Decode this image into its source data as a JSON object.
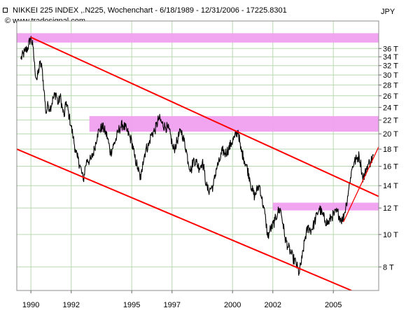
{
  "header": {
    "title": "NIKKEI 225 INDEX ,.N225, Wochenchart - 6/18/1989 - 12/31/2006 - 17225.8301",
    "watermark": "© www.tradesignal.com",
    "unit": "JPY"
  },
  "colors": {
    "price": "#000000",
    "trendline": "#ff0000",
    "zone": "#f0a0f0",
    "grid": "#b8d8b0",
    "background": "#ffffff"
  },
  "chart_data": {
    "type": "line",
    "title": "NIKKEI 225 INDEX ,.N225, Wochenchart - 6/18/1989 - 12/31/2006 - 17225.8301",
    "xlabel": "",
    "ylabel": "JPY",
    "y_scale": "log",
    "xlim": [
      1989.3,
      2007.25
    ],
    "ylim": [
      6800,
      43500
    ],
    "grid": true,
    "x_ticks": [
      {
        "value": 1990,
        "label": "1990"
      },
      {
        "value": 1992,
        "label": "1992"
      },
      {
        "value": 1995,
        "label": "1995"
      },
      {
        "value": 1997,
        "label": "1997"
      },
      {
        "value": 2000,
        "label": "2000"
      },
      {
        "value": 2002,
        "label": "2002"
      },
      {
        "value": 2005,
        "label": "2005"
      }
    ],
    "y_ticks": [
      {
        "value": 8000,
        "label": "8 T"
      },
      {
        "value": 10000,
        "label": "10 T"
      },
      {
        "value": 12000,
        "label": "12 T"
      },
      {
        "value": 14000,
        "label": "14 T"
      },
      {
        "value": 16000,
        "label": "16 T"
      },
      {
        "value": 18000,
        "label": "18 T"
      },
      {
        "value": 20000,
        "label": "20 T"
      },
      {
        "value": 22000,
        "label": "22 T"
      },
      {
        "value": 24000,
        "label": "24 T"
      },
      {
        "value": 26000,
        "label": "26 T"
      },
      {
        "value": 28000,
        "label": "28 T"
      },
      {
        "value": 30000,
        "label": "30 T"
      },
      {
        "value": 32000,
        "label": "32 T"
      },
      {
        "value": 34000,
        "label": "34 T"
      },
      {
        "value": 36000,
        "label": "36 T"
      }
    ],
    "series": [
      {
        "values": [
          [
            1989.5,
            33500
          ],
          [
            1989.7,
            35300
          ],
          [
            1989.85,
            36200
          ],
          [
            1989.99,
            38900
          ],
          [
            1990.1,
            36500
          ],
          [
            1990.2,
            31000
          ],
          [
            1990.3,
            29000
          ],
          [
            1990.45,
            32500
          ],
          [
            1990.55,
            31500
          ],
          [
            1990.65,
            27000
          ],
          [
            1990.75,
            23000
          ],
          [
            1990.85,
            24500
          ],
          [
            1990.95,
            23800
          ],
          [
            1991.1,
            25500
          ],
          [
            1991.25,
            26500
          ],
          [
            1991.35,
            24500
          ],
          [
            1991.45,
            26000
          ],
          [
            1991.55,
            24000
          ],
          [
            1991.65,
            22500
          ],
          [
            1991.75,
            25000
          ],
          [
            1991.9,
            22500
          ],
          [
            1992.0,
            21000
          ],
          [
            1992.1,
            19500
          ],
          [
            1992.2,
            18000
          ],
          [
            1992.3,
            17000
          ],
          [
            1992.45,
            16000
          ],
          [
            1992.6,
            14500
          ],
          [
            1992.7,
            16000
          ],
          [
            1992.8,
            16800
          ],
          [
            1992.9,
            16600
          ],
          [
            1993.0,
            16800
          ],
          [
            1993.15,
            18000
          ],
          [
            1993.3,
            20000
          ],
          [
            1993.4,
            20500
          ],
          [
            1993.55,
            21000
          ],
          [
            1993.7,
            20200
          ],
          [
            1993.8,
            19500
          ],
          [
            1993.95,
            17500
          ],
          [
            1994.1,
            18500
          ],
          [
            1994.25,
            19500
          ],
          [
            1994.35,
            20500
          ],
          [
            1994.45,
            21000
          ],
          [
            1994.55,
            21300
          ],
          [
            1994.75,
            20500
          ],
          [
            1994.9,
            19600
          ],
          [
            1995.0,
            19000
          ],
          [
            1995.15,
            17000
          ],
          [
            1995.3,
            15800
          ],
          [
            1995.45,
            14600
          ],
          [
            1995.55,
            16500
          ],
          [
            1995.7,
            18000
          ],
          [
            1995.85,
            18500
          ],
          [
            1995.95,
            19800
          ],
          [
            1996.15,
            20500
          ],
          [
            1996.35,
            22300
          ],
          [
            1996.5,
            21500
          ],
          [
            1996.65,
            21000
          ],
          [
            1996.8,
            20800
          ],
          [
            1996.95,
            19500
          ],
          [
            1997.05,
            18000
          ],
          [
            1997.15,
            18200
          ],
          [
            1997.3,
            19500
          ],
          [
            1997.45,
            20500
          ],
          [
            1997.55,
            19500
          ],
          [
            1997.7,
            18000
          ],
          [
            1997.8,
            16500
          ],
          [
            1997.95,
            15500
          ],
          [
            1998.05,
            16700
          ],
          [
            1998.2,
            16500
          ],
          [
            1998.35,
            15800
          ],
          [
            1998.5,
            16500
          ],
          [
            1998.6,
            15500
          ],
          [
            1998.7,
            14000
          ],
          [
            1998.8,
            13500
          ],
          [
            1998.95,
            13800
          ],
          [
            1999.05,
            14000
          ],
          [
            1999.2,
            15800
          ],
          [
            1999.35,
            16500
          ],
          [
            1999.5,
            17800
          ],
          [
            1999.65,
            17500
          ],
          [
            1999.8,
            18000
          ],
          [
            1999.95,
            18800
          ],
          [
            2000.1,
            19500
          ],
          [
            2000.28,
            20500
          ],
          [
            2000.4,
            18000
          ],
          [
            2000.55,
            17000
          ],
          [
            2000.7,
            16000
          ],
          [
            2000.85,
            14800
          ],
          [
            2000.95,
            13700
          ],
          [
            2001.1,
            13000
          ],
          [
            2001.25,
            13800
          ],
          [
            2001.35,
            14000
          ],
          [
            2001.45,
            12800
          ],
          [
            2001.55,
            12000
          ],
          [
            2001.65,
            11000
          ],
          [
            2001.75,
            9800
          ],
          [
            2001.85,
            10300
          ],
          [
            2001.95,
            10500
          ],
          [
            2002.1,
            11000
          ],
          [
            2002.25,
            11700
          ],
          [
            2002.38,
            11900
          ],
          [
            2002.5,
            10800
          ],
          [
            2002.6,
            9800
          ],
          [
            2002.75,
            9200
          ],
          [
            2002.9,
            8800
          ],
          [
            2003.0,
            8500
          ],
          [
            2003.15,
            8200
          ],
          [
            2003.3,
            7650
          ],
          [
            2003.45,
            8500
          ],
          [
            2003.6,
            9800
          ],
          [
            2003.75,
            10500
          ],
          [
            2003.9,
            10300
          ],
          [
            2004.05,
            10800
          ],
          [
            2004.2,
            11500
          ],
          [
            2004.3,
            12000
          ],
          [
            2004.45,
            11500
          ],
          [
            2004.6,
            11000
          ],
          [
            2004.75,
            10800
          ],
          [
            2004.9,
            11300
          ],
          [
            2005.05,
            11500
          ],
          [
            2005.2,
            11700
          ],
          [
            2005.35,
            11200
          ],
          [
            2005.45,
            11000
          ],
          [
            2005.55,
            11600
          ],
          [
            2005.65,
            12400
          ],
          [
            2005.75,
            13500
          ],
          [
            2005.85,
            14800
          ],
          [
            2005.95,
            16000
          ],
          [
            2006.05,
            16500
          ],
          [
            2006.15,
            16800
          ],
          [
            2006.28,
            17200
          ],
          [
            2006.38,
            16000
          ],
          [
            2006.45,
            14800
          ],
          [
            2006.55,
            15000
          ],
          [
            2006.65,
            15800
          ],
          [
            2006.75,
            16300
          ],
          [
            2006.85,
            16500
          ],
          [
            2006.99,
            17225
          ]
        ]
      }
    ],
    "zones": [
      {
        "x0": 1989.3,
        "x1": 2007.25,
        "y0": 37500,
        "y1": 40000
      },
      {
        "x0": 1992.9,
        "x1": 2007.25,
        "y0": 20300,
        "y1": 22600
      },
      {
        "x0": 2002.0,
        "x1": 2007.25,
        "y0": 11800,
        "y1": 12450
      }
    ],
    "trendlines": [
      {
        "x0": 1989.99,
        "y0": 38900,
        "x1": 2007.25,
        "y1": 13000
      },
      {
        "x0": 1989.3,
        "y0": 18000,
        "x1": 2005.9,
        "y1": 6800
      },
      {
        "x0": 2005.5,
        "y0": 10900,
        "x1": 2007.25,
        "y1": 18300
      }
    ]
  }
}
